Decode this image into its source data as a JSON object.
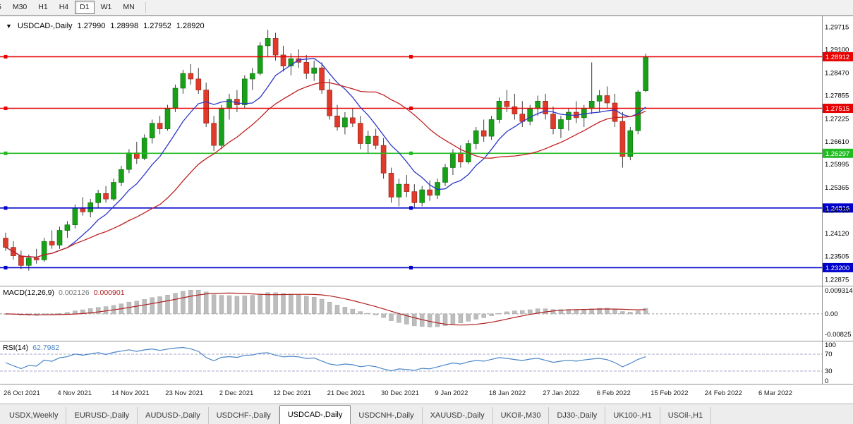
{
  "toolbar": {
    "timeframes": [
      "5",
      "M30",
      "H1",
      "H4",
      "D1",
      "W1",
      "MN"
    ],
    "active_timeframe": "D1"
  },
  "chart": {
    "symbol_title": "USDCAD-,Daily",
    "quote": {
      "open": "1.27990",
      "high": "1.28998",
      "low": "1.27952",
      "close": "1.28920"
    }
  },
  "price_axis": {
    "labels": [
      "1.29715",
      "1.29100",
      "1.28470",
      "1.27855",
      "1.27225",
      "1.26610",
      "1.25995",
      "1.25365",
      "1.24750",
      "1.24120",
      "1.23505",
      "1.22875"
    ]
  },
  "hlines": [
    {
      "price": 1.28912,
      "label": "1.28912",
      "color": "#e60000"
    },
    {
      "price": 1.27515,
      "label": "1.27515",
      "color": "#e60000"
    },
    {
      "price": 1.26297,
      "label": "1.26297",
      "color": "#22bb22"
    },
    {
      "price": 1.24816,
      "label": "1.24816",
      "color": "#0000cc"
    },
    {
      "price": 1.232,
      "label": "1.23200",
      "color": "#0000cc"
    }
  ],
  "macd_panel": {
    "title": "MACD(12,26,9)",
    "value_main": "0.002126",
    "value_signal": "0.000901",
    "axis_labels": [
      "0.009314",
      "0.00",
      "-0.00825"
    ],
    "fast": 12,
    "slow": 26,
    "signal": 9
  },
  "rsi_panel": {
    "title": "RSI(14)",
    "value": "62.7982",
    "axis_labels": [
      "100",
      "70",
      "30",
      "0"
    ],
    "period": 14,
    "levels": [
      70,
      30
    ]
  },
  "date_axis": [
    "26 Oct 2021",
    "4 Nov 2021",
    "14 Nov 2021",
    "23 Nov 2021",
    "2 Dec 2021",
    "12 Dec 2021",
    "21 Dec 2021",
    "30 Dec 2021",
    "9 Jan 2022",
    "18 Jan 2022",
    "27 Jan 2022",
    "6 Feb 2022",
    "15 Feb 2022",
    "24 Feb 2022",
    "6 Mar 2022"
  ],
  "tabs": {
    "items": [
      "USDX,Weekly",
      "EURUSD-,Daily",
      "AUDUSD-,Daily",
      "USDCHF-,Daily",
      "USDCAD-,Daily",
      "USDCNH-,Daily",
      "XAUUSD-,Daily",
      "UKOil-,M30",
      "DJ30-,Daily",
      "UK100-,H1",
      "USOil-,H1"
    ],
    "active": "USDCAD-,Daily"
  },
  "colors": {
    "up": "#18a018",
    "down": "#e03a2a",
    "wick": "#3c3c3c",
    "ma_fast": "#2b36c8",
    "ma_slow": "#c02020",
    "macd_hist": "#bdbdbd",
    "macd_signal": "#b02020",
    "rsi": "#4a86c8",
    "panel_border": "#909090"
  },
  "chart_data": {
    "type": "candlestick",
    "symbol": "USDCAD",
    "timeframe": "Daily",
    "price_range": {
      "max": 1.2999,
      "min": 1.2273
    },
    "candles": [
      [
        1.24,
        1.2415,
        1.2365,
        1.2375
      ],
      [
        1.2375,
        1.2392,
        1.2342,
        1.2352
      ],
      [
        1.2352,
        1.2366,
        1.2316,
        1.2326
      ],
      [
        1.2326,
        1.2356,
        1.2312,
        1.2346
      ],
      [
        1.2346,
        1.2371,
        1.2331,
        1.2341
      ],
      [
        1.2341,
        1.2401,
        1.2336,
        1.2391
      ],
      [
        1.2391,
        1.2421,
        1.2371,
        1.2381
      ],
      [
        1.2381,
        1.2431,
        1.2371,
        1.2421
      ],
      [
        1.2421,
        1.2446,
        1.2401,
        1.2436
      ],
      [
        1.2436,
        1.2491,
        1.2426,
        1.2481
      ],
      [
        1.2481,
        1.2511,
        1.2461,
        1.2471
      ],
      [
        1.2471,
        1.2506,
        1.2456,
        1.2496
      ],
      [
        1.2496,
        1.2531,
        1.2481,
        1.2521
      ],
      [
        1.2521,
        1.2541,
        1.2496,
        1.2506
      ],
      [
        1.2506,
        1.2561,
        1.2501,
        1.2551
      ],
      [
        1.2551,
        1.2596,
        1.2541,
        1.2586
      ],
      [
        1.2586,
        1.2641,
        1.2576,
        1.2631
      ],
      [
        1.2631,
        1.2661,
        1.2601,
        1.2616
      ],
      [
        1.2616,
        1.2681,
        1.2611,
        1.2671
      ],
      [
        1.2671,
        1.2721,
        1.2656,
        1.2711
      ],
      [
        1.2711,
        1.2731,
        1.2681,
        1.2696
      ],
      [
        1.2696,
        1.2761,
        1.2691,
        1.2751
      ],
      [
        1.2751,
        1.2816,
        1.2741,
        1.2806
      ],
      [
        1.2806,
        1.2856,
        1.2791,
        1.2846
      ],
      [
        1.2846,
        1.2871,
        1.2816,
        1.2831
      ],
      [
        1.2831,
        1.2861,
        1.2791,
        1.2801
      ],
      [
        1.2801,
        1.2821,
        1.2701,
        1.2711
      ],
      [
        1.2711,
        1.2731,
        1.2636,
        1.2651
      ],
      [
        1.2651,
        1.2761,
        1.2641,
        1.2751
      ],
      [
        1.2751,
        1.2791,
        1.2721,
        1.2776
      ],
      [
        1.2776,
        1.2801,
        1.2741,
        1.2761
      ],
      [
        1.2761,
        1.2841,
        1.2751,
        1.2831
      ],
      [
        1.2831,
        1.2861,
        1.2801,
        1.2846
      ],
      [
        1.2846,
        1.2931,
        1.2841,
        1.2921
      ],
      [
        1.2921,
        1.2964,
        1.2891,
        1.2941
      ],
      [
        1.2941,
        1.2956,
        1.2881,
        1.2896
      ],
      [
        1.2896,
        1.2921,
        1.2851,
        1.2866
      ],
      [
        1.2866,
        1.2901,
        1.2841,
        1.2886
      ],
      [
        1.2886,
        1.2911,
        1.2861,
        1.2876
      ],
      [
        1.2876,
        1.2896,
        1.2831,
        1.2846
      ],
      [
        1.2846,
        1.2881,
        1.2826,
        1.2861
      ],
      [
        1.2861,
        1.2876,
        1.2791,
        1.2801
      ],
      [
        1.2801,
        1.2831,
        1.2721,
        1.2731
      ],
      [
        1.2731,
        1.2761,
        1.2691,
        1.2701
      ],
      [
        1.2701,
        1.2741,
        1.2681,
        1.2726
      ],
      [
        1.2726,
        1.2751,
        1.2701,
        1.2711
      ],
      [
        1.2711,
        1.2731,
        1.2641,
        1.2656
      ],
      [
        1.2656,
        1.2691,
        1.2631,
        1.2676
      ],
      [
        1.2676,
        1.2696,
        1.2641,
        1.2651
      ],
      [
        1.2651,
        1.2671,
        1.2561,
        1.2576
      ],
      [
        1.2576,
        1.2591,
        1.2496,
        1.2511
      ],
      [
        1.2511,
        1.2561,
        1.2486,
        1.2546
      ],
      [
        1.2546,
        1.2571,
        1.2511,
        1.2526
      ],
      [
        1.2526,
        1.2546,
        1.2481,
        1.2496
      ],
      [
        1.2496,
        1.2541,
        1.2486,
        1.2531
      ],
      [
        1.2531,
        1.2556,
        1.2501,
        1.2516
      ],
      [
        1.2516,
        1.2561,
        1.2506,
        1.2551
      ],
      [
        1.2551,
        1.2601,
        1.2541,
        1.2591
      ],
      [
        1.2591,
        1.2641,
        1.2571,
        1.2631
      ],
      [
        1.2631,
        1.2651,
        1.2591,
        1.2606
      ],
      [
        1.2606,
        1.2666,
        1.2601,
        1.2656
      ],
      [
        1.2656,
        1.2701,
        1.2641,
        1.2691
      ],
      [
        1.2691,
        1.2721,
        1.2661,
        1.2676
      ],
      [
        1.2676,
        1.2731,
        1.2666,
        1.2721
      ],
      [
        1.2721,
        1.2781,
        1.2711,
        1.2771
      ],
      [
        1.2771,
        1.2801,
        1.2741,
        1.2756
      ],
      [
        1.2756,
        1.2791,
        1.2721,
        1.2736
      ],
      [
        1.2736,
        1.2771,
        1.2701,
        1.2716
      ],
      [
        1.2716,
        1.2761,
        1.2706,
        1.2751
      ],
      [
        1.2751,
        1.2786,
        1.2731,
        1.2771
      ],
      [
        1.2771,
        1.2791,
        1.2721,
        1.2736
      ],
      [
        1.2736,
        1.2756,
        1.2681,
        1.2696
      ],
      [
        1.2696,
        1.2731,
        1.2671,
        1.2721
      ],
      [
        1.2721,
        1.2751,
        1.2691,
        1.2741
      ],
      [
        1.2741,
        1.2771,
        1.2711,
        1.2726
      ],
      [
        1.2726,
        1.2761,
        1.2701,
        1.2751
      ],
      [
        1.2751,
        1.2876,
        1.2736,
        1.2771
      ],
      [
        1.2771,
        1.2801,
        1.2741,
        1.2786
      ],
      [
        1.2786,
        1.2811,
        1.2751,
        1.2766
      ],
      [
        1.2766,
        1.2791,
        1.2701,
        1.2716
      ],
      [
        1.2716,
        1.2741,
        1.2591,
        1.2621
      ],
      [
        1.2621,
        1.2701,
        1.2611,
        1.2691
      ],
      [
        1.2691,
        1.2801,
        1.2681,
        1.2796
      ],
      [
        1.2799,
        1.28998,
        1.27952,
        1.2892
      ]
    ]
  }
}
